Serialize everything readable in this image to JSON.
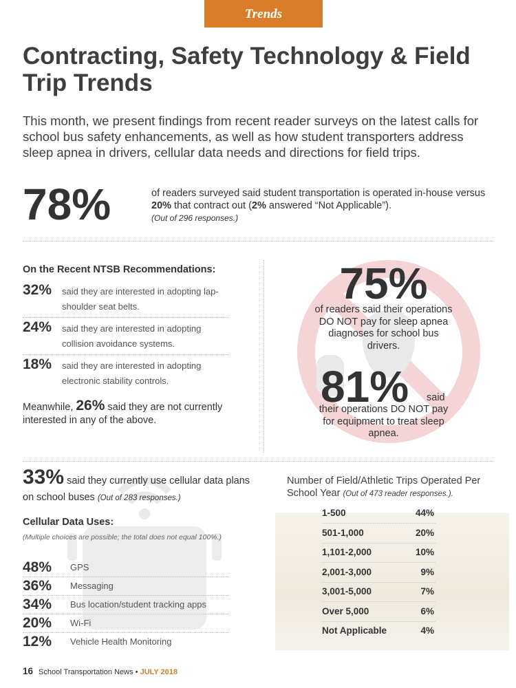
{
  "section_tab": "Trends",
  "headline": "Contracting, Safety Technology & Field Trip Trends",
  "intro": "This month, we present findings from recent reader surveys on the latest calls for school bus safety enhancements, as well as how student transporters address sleep apnea in drivers, cellular data needs and directions for field trips.",
  "inhouse": {
    "stat": "78%",
    "text_a": "of readers surveyed said student transportation is operated in-house versus ",
    "contract_pct": "20%",
    "text_b": " that contract out (",
    "na_pct": "2%",
    "text_c": " answered “Not Applicable”).",
    "note": "(Out of 296 responses.)"
  },
  "ntsb": {
    "title": "On the Recent NTSB Recommendations:",
    "items": [
      {
        "pct": "32%",
        "text": "said they are interested in adopting lap-shoulder seat belts."
      },
      {
        "pct": "24%",
        "text": "said they are interested in adopting collision avoidance systems."
      },
      {
        "pct": "18%",
        "text": "said they are interested in adopting electronic stability controls."
      }
    ],
    "meanwhile_a": "Meanwhile, ",
    "meanwhile_pct": "26%",
    "meanwhile_b": " said they are not currently interested in any of the above."
  },
  "sleep_apnea": {
    "stat_a": "75%",
    "text_a": "of readers said their operations DO NOT pay for sleep apnea diagnoses for school bus drivers.",
    "stat_b": "81%",
    "said": "said",
    "text_b": "their operations DO NOT pay for equipment to treat sleep apnea."
  },
  "cellular": {
    "stat": "33%",
    "text": " said they currently use cellular data plans on school buses ",
    "note": "(Out of 283 responses.)",
    "uses_title": "Cellular Data Uses:",
    "uses_note": "(Multiple choices are possible; the total does not equal 100%.)",
    "uses": [
      {
        "pct": "48%",
        "label": "GPS"
      },
      {
        "pct": "36%",
        "label": "Messaging"
      },
      {
        "pct": "34%",
        "label": "Bus location/student tracking apps"
      },
      {
        "pct": "20%",
        "label": "Wi-Fi"
      },
      {
        "pct": "12%",
        "label": "Vehicle Health Monitoring"
      }
    ]
  },
  "trips": {
    "title": "Number of Field/Athletic Trips Operated Per School Year ",
    "note": "(Out of 473 reader responses.).",
    "rows": [
      {
        "category": "1-500",
        "value": "44%"
      },
      {
        "category": "501-1,000",
        "value": "20%"
      },
      {
        "category": "1,101-2,000",
        "value": "10%"
      },
      {
        "category": "2,001-3,000",
        "value": "9%"
      },
      {
        "category": "3,001-5,000",
        "value": "7%"
      },
      {
        "category": "Over 5,000",
        "value": "6%"
      },
      {
        "category": "Not Applicable",
        "value": "4%"
      }
    ]
  },
  "footer": {
    "page": "16",
    "publication": "School Transportation News • ",
    "issue": "JULY 2018"
  },
  "colors": {
    "accent_orange": "#d97d2b",
    "no_sign_red": "#f4d4d4",
    "watermark_gray": "#e9e9e9"
  }
}
